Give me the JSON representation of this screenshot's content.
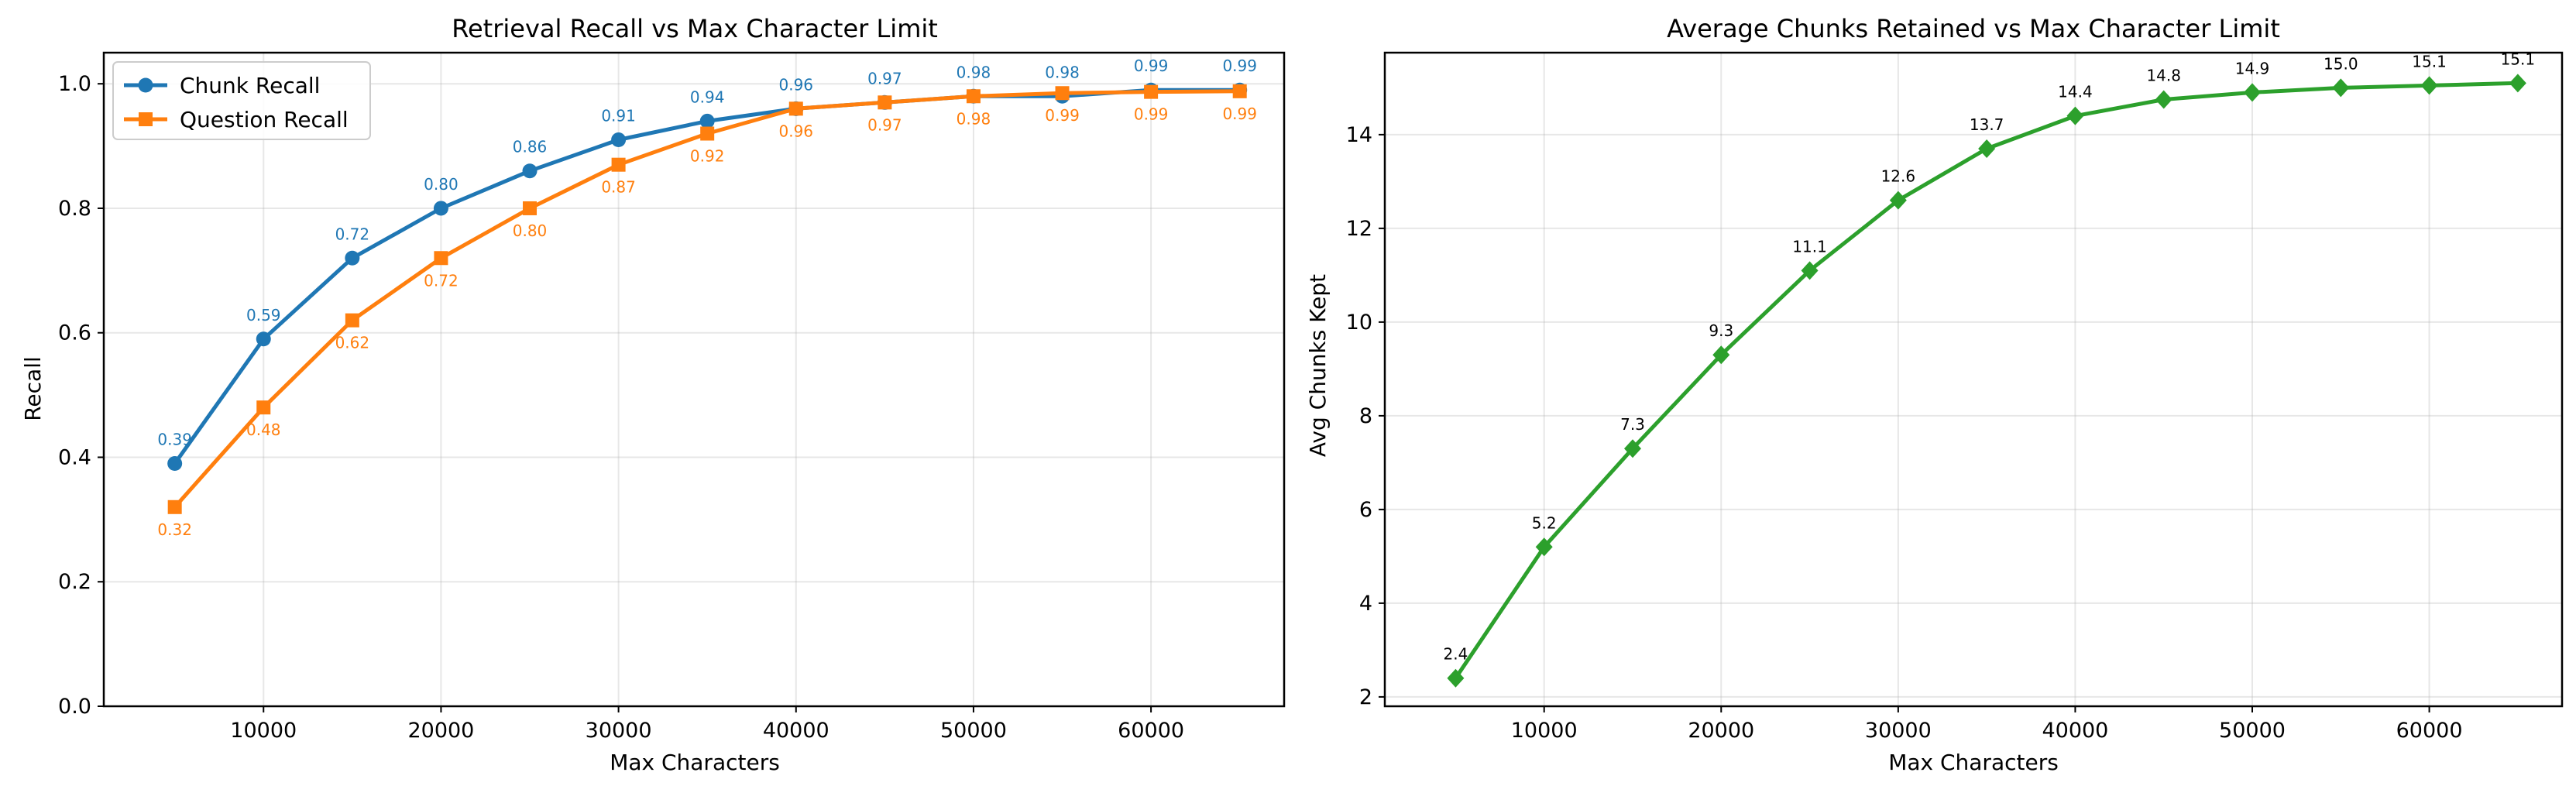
{
  "chart_data": [
    {
      "type": "line",
      "title": "Retrieval Recall vs Max Character Limit",
      "xlabel": "Max Characters",
      "ylabel": "Recall",
      "x": [
        5000,
        10000,
        15000,
        20000,
        25000,
        30000,
        35000,
        40000,
        45000,
        50000,
        55000,
        60000,
        65000
      ],
      "xlim": [
        1000,
        67500
      ],
      "ylim": [
        0,
        1.05
      ],
      "xticks": [
        10000,
        20000,
        30000,
        40000,
        50000,
        60000
      ],
      "yticks": [
        0.0,
        0.2,
        0.4,
        0.6,
        0.8,
        1.0
      ],
      "ytick_decimals": 1,
      "grid": true,
      "legend": "top-left",
      "series": [
        {
          "name": "Chunk Recall",
          "color": "#1f77b4",
          "marker": "circle",
          "label_position": "above",
          "values": [
            0.39,
            0.59,
            0.72,
            0.8,
            0.86,
            0.91,
            0.94,
            0.96,
            0.97,
            0.98,
            0.98,
            0.99,
            0.99
          ],
          "labels": [
            "0.39",
            "0.59",
            "0.72",
            "0.80",
            "0.86",
            "0.91",
            "0.94",
            "0.96",
            "0.97",
            "0.98",
            "0.98",
            "0.99",
            "0.99"
          ]
        },
        {
          "name": "Question Recall",
          "color": "#ff7f0e",
          "marker": "square",
          "label_position": "below",
          "values": [
            0.32,
            0.48,
            0.62,
            0.72,
            0.8,
            0.87,
            0.92,
            0.96,
            0.97,
            0.98,
            0.985,
            0.987,
            0.988
          ],
          "labels": [
            "0.32",
            "0.48",
            "0.62",
            "0.72",
            "0.80",
            "0.87",
            "0.92",
            "0.96",
            "0.97",
            "0.98",
            "0.99",
            "0.99",
            "0.99"
          ]
        }
      ]
    },
    {
      "type": "line",
      "title": "Average Chunks Retained vs Max Character Limit",
      "xlabel": "Max Characters",
      "ylabel": "Avg Chunks Kept",
      "x": [
        5000,
        10000,
        15000,
        20000,
        25000,
        30000,
        35000,
        40000,
        45000,
        50000,
        55000,
        60000,
        65000
      ],
      "xlim": [
        1000,
        67500
      ],
      "ylim": [
        1.8,
        15.75
      ],
      "xticks": [
        10000,
        20000,
        30000,
        40000,
        50000,
        60000
      ],
      "yticks": [
        2,
        4,
        6,
        8,
        10,
        12,
        14
      ],
      "ytick_decimals": 0,
      "grid": true,
      "series": [
        {
          "name": "",
          "color": "#2ca02c",
          "marker": "diamond",
          "label_position": "above",
          "label_color": "#000000",
          "values": [
            2.4,
            5.2,
            7.3,
            9.3,
            11.1,
            12.6,
            13.7,
            14.4,
            14.75,
            14.9,
            15.0,
            15.05,
            15.1
          ],
          "labels": [
            "2.4",
            "5.2",
            "7.3",
            "9.3",
            "11.1",
            "12.6",
            "13.7",
            "14.4",
            "14.8",
            "14.9",
            "15.0",
            "15.1",
            "15.1"
          ]
        }
      ]
    }
  ]
}
